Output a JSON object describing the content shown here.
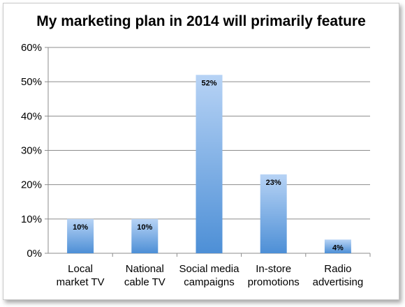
{
  "chart_data": {
    "type": "bar",
    "title": "My marketing plan in 2014 will primarily feature",
    "categories": [
      [
        "Local",
        "market TV"
      ],
      [
        "National",
        "cable TV"
      ],
      [
        "Social media",
        "campaigns"
      ],
      [
        "In-store",
        "promotions"
      ],
      [
        "Radio",
        "advertising"
      ]
    ],
    "values": [
      10,
      10,
      52,
      23,
      4
    ],
    "data_labels": [
      "10%",
      "10%",
      "52%",
      "23%",
      "4%"
    ],
    "y_ticks": [
      "0%",
      "10%",
      "20%",
      "30%",
      "40%",
      "50%",
      "60%"
    ],
    "ylim": [
      0,
      60
    ],
    "grid": true,
    "legend": "none",
    "colors": {
      "bar_top": "#b7d3f5",
      "bar_bottom": "#4d8fd6",
      "grid": "#8c8c8c",
      "axis": "#8c8c8c"
    }
  }
}
